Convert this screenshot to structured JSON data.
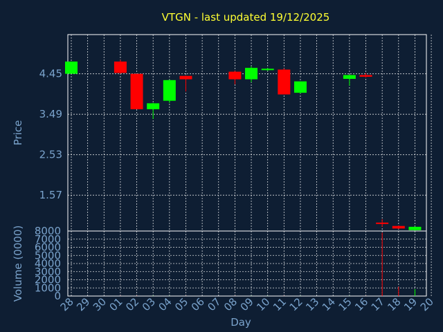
{
  "chart_data": {
    "type": "candlestick",
    "title": "VTGN - last updated 19/12/2025",
    "xlabel": "Day",
    "price_panel": {
      "ylabel": "Price",
      "yticks": [
        "4.45",
        "3.49",
        "2.53",
        "1.57"
      ],
      "ytick_values": [
        4.45,
        3.49,
        2.53,
        1.57
      ],
      "ylim": [
        0.72,
        5.38
      ],
      "grid": true
    },
    "volume_panel": {
      "ylabel": "Volume (0000)",
      "yticks": [
        "8000",
        "7000",
        "6000",
        "5000",
        "4000",
        "3000",
        "2000",
        "1000",
        "0"
      ],
      "ytick_values": [
        8000,
        7000,
        6000,
        5000,
        4000,
        3000,
        2000,
        1000,
        0
      ],
      "ylim": [
        0,
        8000
      ],
      "grid": true
    },
    "x_labels": [
      "28",
      "29",
      "30",
      "01",
      "02",
      "03",
      "04",
      "05",
      "06",
      "07",
      "08",
      "09",
      "10",
      "11",
      "12",
      "13",
      "14",
      "15",
      "16",
      "17",
      "18",
      "19",
      "20"
    ],
    "up_color": "#00ff00",
    "down_color": "#ff0000",
    "candles": [
      {
        "day": "28",
        "open": 4.45,
        "close": 4.74,
        "high": 4.74,
        "low": 4.45,
        "volume": 0
      },
      {
        "day": "01",
        "open": 4.74,
        "close": 4.47,
        "high": 4.78,
        "low": 4.45,
        "volume": 20
      },
      {
        "day": "02",
        "open": 4.45,
        "close": 3.61,
        "high": 4.45,
        "low": 3.61,
        "volume": 30
      },
      {
        "day": "03",
        "open": 3.61,
        "close": 3.75,
        "high": 3.76,
        "low": 3.38,
        "volume": 30
      },
      {
        "day": "04",
        "open": 3.81,
        "close": 4.3,
        "high": 4.31,
        "low": 3.76,
        "volume": 20
      },
      {
        "day": "05",
        "open": 4.4,
        "close": 4.32,
        "high": 4.41,
        "low": 4.03,
        "volume": 20
      },
      {
        "day": "08",
        "open": 4.5,
        "close": 4.32,
        "high": 4.52,
        "low": 4.2,
        "volume": 20
      },
      {
        "day": "09",
        "open": 4.32,
        "close": 4.59,
        "high": 4.63,
        "low": 4.25,
        "volume": 20
      },
      {
        "day": "10",
        "open": 4.54,
        "close": 4.57,
        "high": 4.59,
        "low": 4.52,
        "volume": 20
      },
      {
        "day": "11",
        "open": 4.55,
        "close": 3.96,
        "high": 4.58,
        "low": 3.96,
        "volume": 20
      },
      {
        "day": "12",
        "open": 4.0,
        "close": 4.27,
        "high": 4.27,
        "low": 3.98,
        "volume": 20
      },
      {
        "day": "15",
        "open": 4.33,
        "close": 4.42,
        "high": 4.43,
        "low": 4.17,
        "volume": 20
      },
      {
        "day": "16",
        "open": 4.42,
        "close": 4.38,
        "high": 4.47,
        "low": 4.36,
        "volume": 20
      },
      {
        "day": "17",
        "open": 0.92,
        "close": 0.9,
        "high": 1.0,
        "low": 0.82,
        "volume": 7800
      },
      {
        "day": "18",
        "open": 0.84,
        "close": 0.78,
        "high": 0.85,
        "low": 0.77,
        "volume": 1150
      },
      {
        "day": "19",
        "open": 0.74,
        "close": 0.82,
        "high": 0.83,
        "low": 0.73,
        "volume": 850
      }
    ]
  }
}
